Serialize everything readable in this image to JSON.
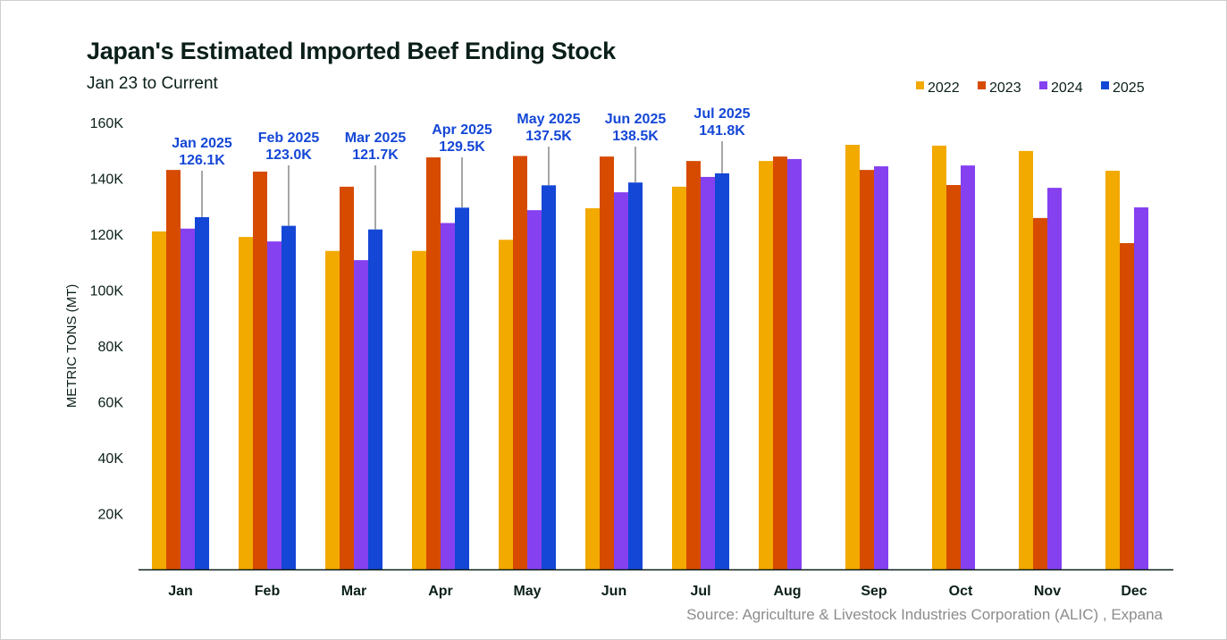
{
  "chart_data": {
    "type": "bar",
    "title": "Japan's Estimated Imported Beef Ending Stock",
    "subtitle": "Jan 23 to Current",
    "xlabel": "",
    "ylabel": "METRIC TONS (MT)",
    "ylim": [
      0,
      160000
    ],
    "yticks": [
      "20K",
      "40K",
      "60K",
      "80K",
      "100K",
      "120K",
      "140K",
      "160K"
    ],
    "grid": false,
    "legend_position": "top-right",
    "categories": [
      "Jan",
      "Feb",
      "Mar",
      "Apr",
      "May",
      "Jun",
      "Jul",
      "Aug",
      "Sep",
      "Oct",
      "Nov",
      "Dec"
    ],
    "series": [
      {
        "name": "2022",
        "color": "#f2a900",
        "values": [
          121000,
          119000,
          114000,
          114000,
          118000,
          129300,
          137000,
          146200,
          152000,
          151700,
          149800,
          142700
        ]
      },
      {
        "name": "2023",
        "color": "#d64b00",
        "values": [
          143000,
          142400,
          137000,
          147500,
          148000,
          147800,
          146200,
          147800,
          143000,
          137600,
          125800,
          116800
        ]
      },
      {
        "name": "2024",
        "color": "#8540f0",
        "values": [
          122000,
          117400,
          110700,
          124000,
          128600,
          135000,
          140500,
          146900,
          144300,
          144600,
          136600,
          129600
        ]
      },
      {
        "name": "2025",
        "color": "#1447d6",
        "values": [
          126100,
          123000,
          121700,
          129500,
          137500,
          138500,
          141800,
          null,
          null,
          null,
          null,
          null
        ]
      }
    ],
    "annotations": [
      {
        "month": "Jan 2025",
        "value": "126.1K"
      },
      {
        "month": "Feb 2025",
        "value": "123.0K"
      },
      {
        "month": "Mar 2025",
        "value": "121.7K"
      },
      {
        "month": "Apr 2025",
        "value": "129.5K"
      },
      {
        "month": "May 2025",
        "value": "137.5K"
      },
      {
        "month": "Jun 2025",
        "value": "138.5K"
      },
      {
        "month": "Jul 2025",
        "value": "141.8K"
      }
    ],
    "source": "Source: Agriculture & Livestock Industries Corporation (ALIC) , Expana"
  }
}
